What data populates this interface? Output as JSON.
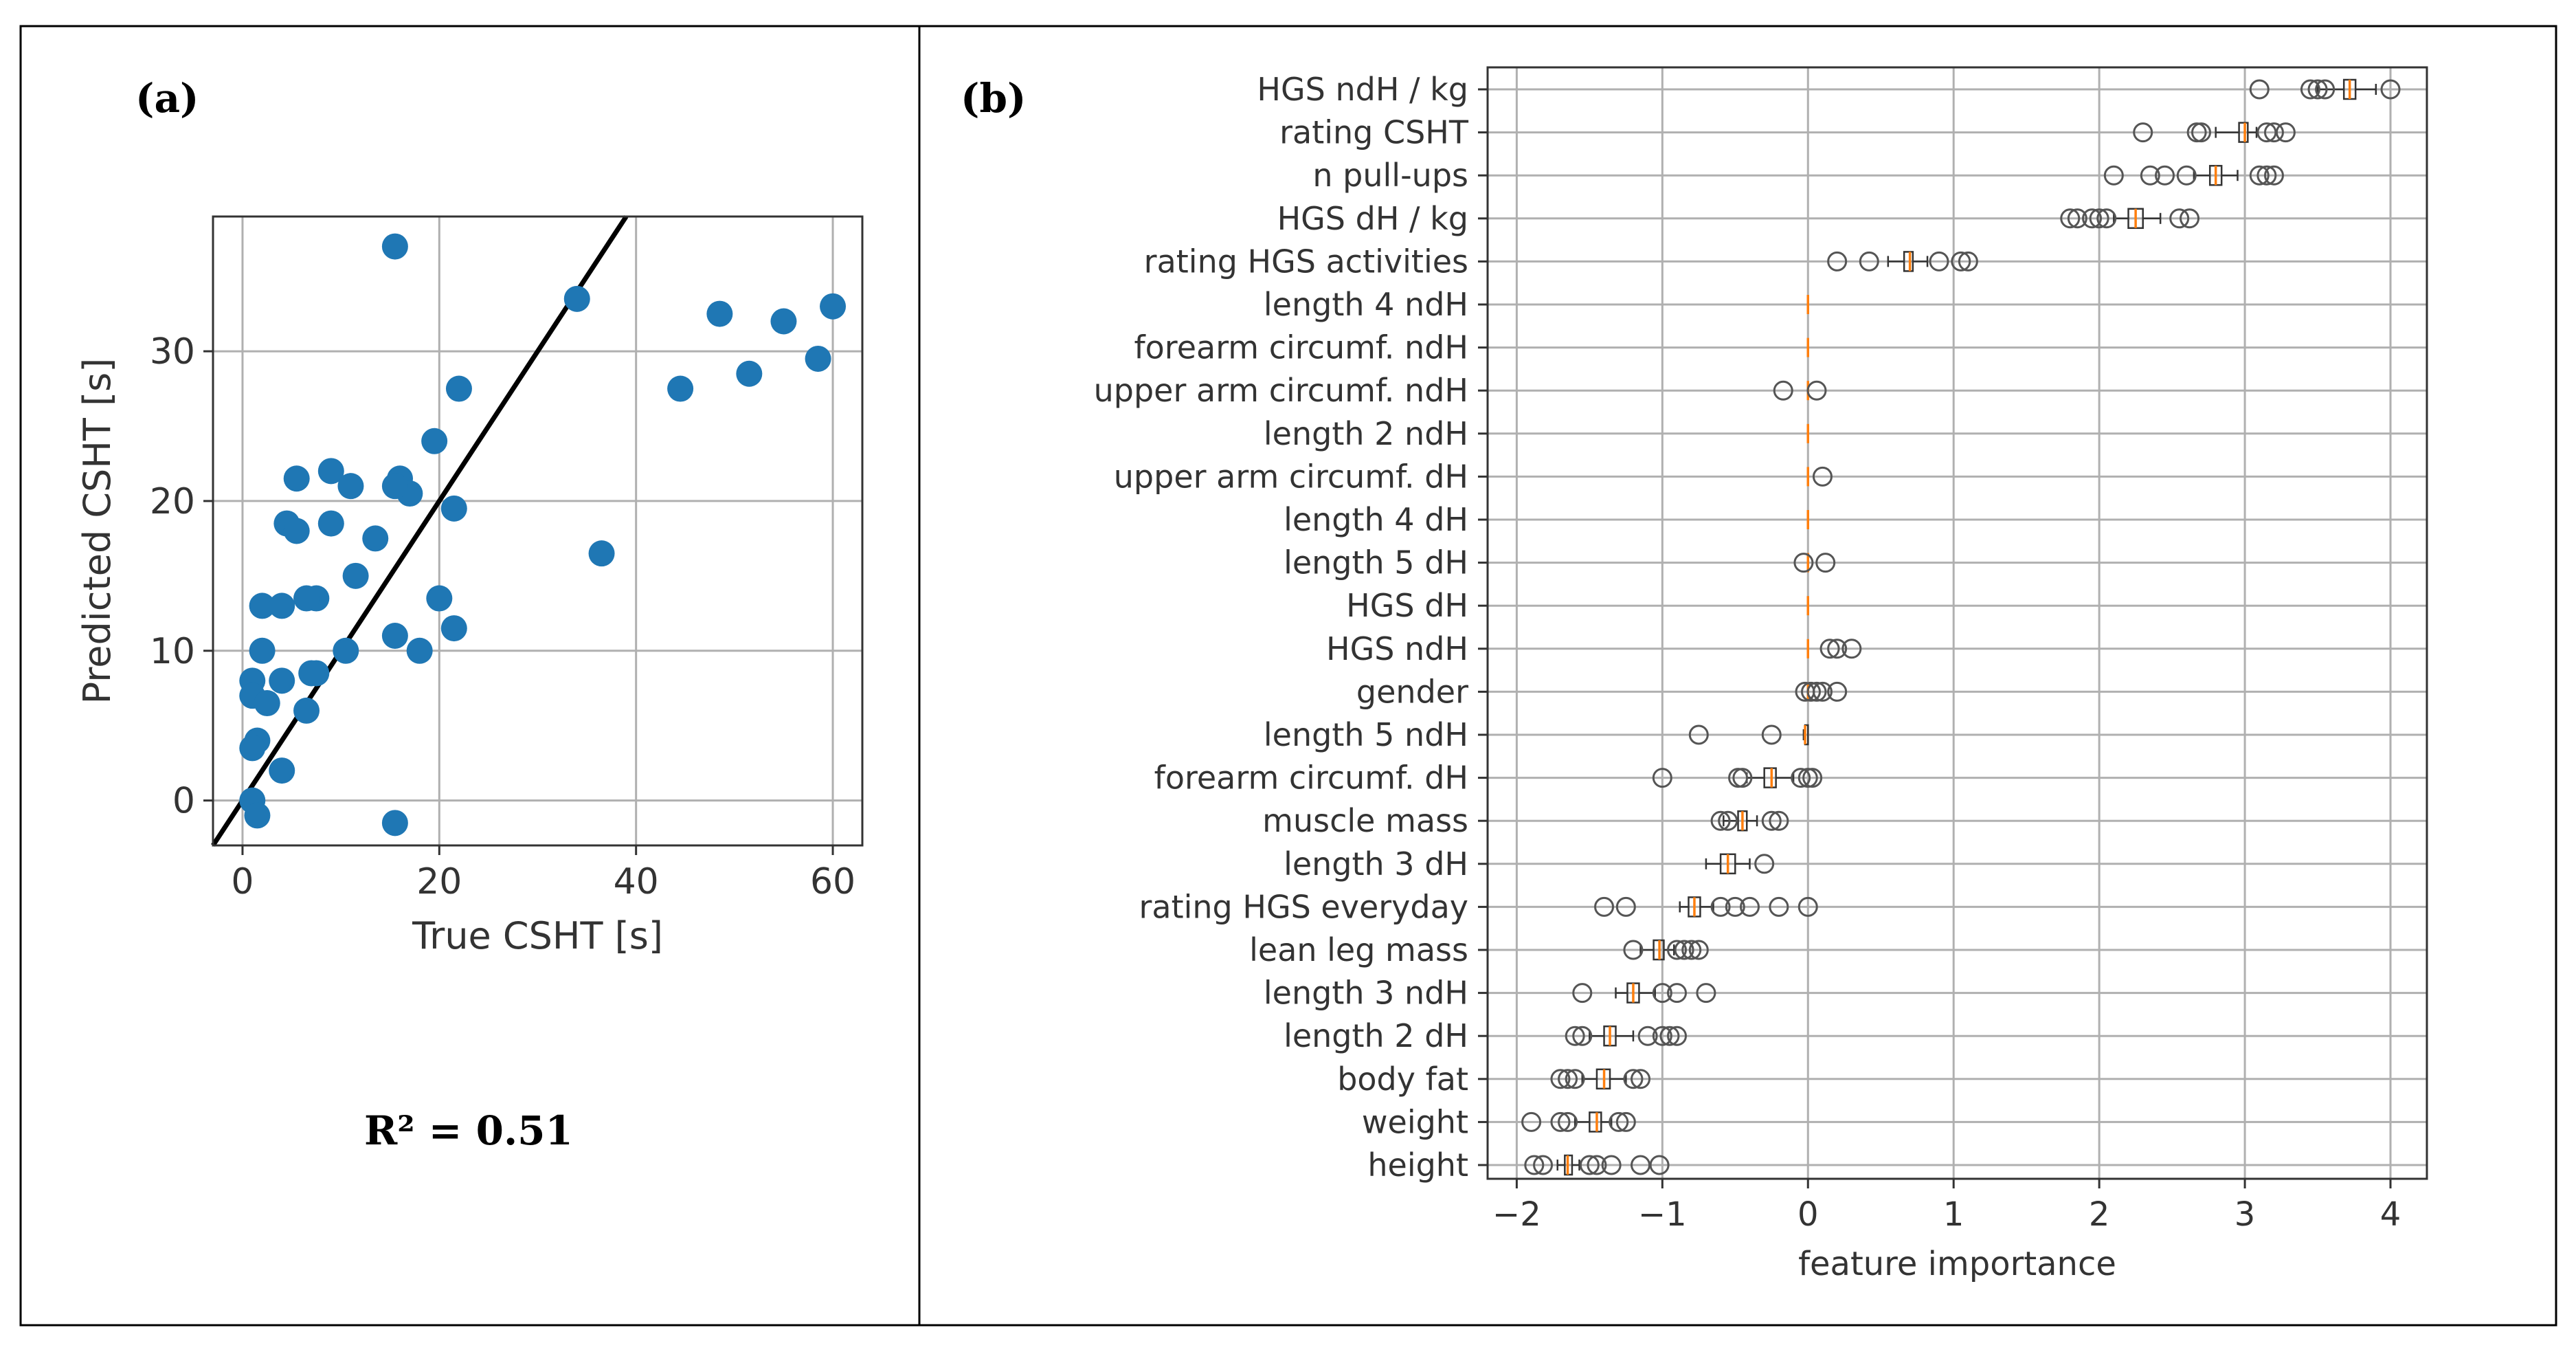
{
  "panel_a": {
    "label": "(a)",
    "r2_text": "R² = 0.51"
  },
  "panel_b": {
    "label": "(b)"
  },
  "chart_data": [
    {
      "type": "scatter",
      "title": "",
      "xlabel": "True CSHT [s]",
      "ylabel": "Predicted CSHT [s]",
      "xlim": [
        -3,
        63
      ],
      "ylim": [
        -3,
        39
      ],
      "xticks": [
        0,
        20,
        40,
        60
      ],
      "yticks": [
        0,
        10,
        20,
        30
      ],
      "grid": true,
      "point_color": "#1f77b4",
      "line_color": "#000000",
      "identity_line": {
        "from": [
          -3,
          -3
        ],
        "to": [
          39,
          39
        ]
      },
      "x": [
        15.5,
        34,
        48.5,
        55,
        60,
        58.5,
        51.5,
        44.5,
        22,
        19.5,
        36.5,
        5.5,
        16,
        17,
        9,
        15.5,
        21.5,
        4.5,
        5.5,
        11,
        9,
        13.5,
        7.5,
        6.5,
        11.5,
        20,
        21.5,
        2,
        4,
        15.5,
        18,
        1,
        2,
        1,
        2.5,
        4,
        7.5,
        6.5,
        7,
        10.5,
        1.5,
        1,
        4,
        1,
        1.5,
        15.5
      ],
      "y": [
        37,
        33.5,
        32.5,
        32,
        33,
        29.5,
        28.5,
        27.5,
        27.5,
        24,
        16.5,
        21.5,
        21.5,
        20.5,
        22,
        21,
        19.5,
        18.5,
        18,
        21,
        18.5,
        17.5,
        13.5,
        13.5,
        15,
        13.5,
        11.5,
        13,
        13,
        11,
        10,
        8,
        10,
        7,
        6.5,
        8,
        8.5,
        6,
        8.5,
        10,
        4,
        3.5,
        2,
        0,
        -1,
        -1.5
      ]
    },
    {
      "type": "boxplot",
      "orientation": "horizontal",
      "xlabel": "feature importance",
      "ylabel": "",
      "xlim": [
        -2.2,
        4.25
      ],
      "xticks": [
        -2,
        -1,
        0,
        1,
        2,
        3,
        4
      ],
      "grid": true,
      "median_color": "#ff7f0e",
      "features": [
        {
          "name": "HGS ndH / kg",
          "whislo": 3.5,
          "q1": 3.68,
          "med": 3.72,
          "q3": 3.76,
          "whishi": 3.9,
          "fliers": [
            3.1,
            3.45,
            3.5,
            3.55,
            4.0
          ]
        },
        {
          "name": "rating CSHT",
          "whislo": 2.8,
          "q1": 2.96,
          "med": 3.0,
          "q3": 3.02,
          "whishi": 3.08,
          "fliers": [
            2.3,
            2.67,
            2.7,
            3.15,
            3.2,
            3.28
          ]
        },
        {
          "name": "n pull-ups",
          "whislo": 2.65,
          "q1": 2.76,
          "med": 2.8,
          "q3": 2.84,
          "whishi": 2.95,
          "fliers": [
            2.1,
            2.35,
            2.45,
            2.6,
            3.1,
            3.15,
            3.2
          ]
        },
        {
          "name": "HGS dH / kg",
          "whislo": 2.1,
          "q1": 2.2,
          "med": 2.25,
          "q3": 2.3,
          "whishi": 2.42,
          "fliers": [
            1.8,
            1.85,
            1.95,
            2.0,
            2.05,
            2.55,
            2.62
          ]
        },
        {
          "name": "rating HGS activities",
          "whislo": 0.55,
          "q1": 0.66,
          "med": 0.7,
          "q3": 0.72,
          "whishi": 0.82,
          "fliers": [
            0.2,
            0.42,
            0.9,
            1.05,
            1.1
          ]
        },
        {
          "name": "length 4 ndH",
          "whislo": 0.0,
          "q1": 0.0,
          "med": 0.0,
          "q3": 0.0,
          "whishi": 0.0,
          "fliers": []
        },
        {
          "name": "forearm circumf. ndH",
          "whislo": 0.0,
          "q1": 0.0,
          "med": 0.0,
          "q3": 0.0,
          "whishi": 0.0,
          "fliers": []
        },
        {
          "name": "upper arm circumf. ndH",
          "whislo": 0.0,
          "q1": 0.0,
          "med": 0.0,
          "q3": 0.0,
          "whishi": 0.0,
          "fliers": [
            -0.17,
            0.06
          ]
        },
        {
          "name": "length 2 ndH",
          "whislo": 0.0,
          "q1": 0.0,
          "med": 0.0,
          "q3": 0.0,
          "whishi": 0.0,
          "fliers": []
        },
        {
          "name": "upper arm circumf. dH",
          "whislo": 0.0,
          "q1": 0.0,
          "med": 0.0,
          "q3": 0.0,
          "whishi": 0.0,
          "fliers": [
            0.1
          ]
        },
        {
          "name": "length 4 dH",
          "whislo": 0.0,
          "q1": 0.0,
          "med": 0.0,
          "q3": 0.0,
          "whishi": 0.0,
          "fliers": []
        },
        {
          "name": "length 5 dH",
          "whislo": 0.0,
          "q1": 0.0,
          "med": 0.0,
          "q3": 0.0,
          "whishi": 0.0,
          "fliers": [
            -0.03,
            0.12
          ]
        },
        {
          "name": "HGS dH",
          "whislo": 0.0,
          "q1": 0.0,
          "med": 0.0,
          "q3": 0.0,
          "whishi": 0.0,
          "fliers": []
        },
        {
          "name": "HGS ndH",
          "whislo": 0.0,
          "q1": 0.0,
          "med": 0.0,
          "q3": 0.0,
          "whishi": 0.0,
          "fliers": [
            0.15,
            0.2,
            0.3
          ]
        },
        {
          "name": "gender",
          "whislo": 0.0,
          "q1": 0.0,
          "med": 0.0,
          "q3": 0.0,
          "whishi": 0.0,
          "fliers": [
            -0.02,
            0.02,
            0.06,
            0.1,
            0.2
          ]
        },
        {
          "name": "length 5 ndH",
          "whislo": -0.03,
          "q1": -0.02,
          "med": -0.02,
          "q3": 0.0,
          "whishi": 0.0,
          "fliers": [
            -0.75,
            -0.25
          ]
        },
        {
          "name": "forearm circumf. dH",
          "whislo": -0.42,
          "q1": -0.3,
          "med": -0.25,
          "q3": -0.22,
          "whishi": -0.1,
          "fliers": [
            -1.0,
            -0.48,
            -0.45,
            -0.05,
            0.0,
            0.03
          ]
        },
        {
          "name": "muscle mass",
          "whislo": -0.58,
          "q1": -0.48,
          "med": -0.45,
          "q3": -0.42,
          "whishi": -0.35,
          "fliers": [
            -0.6,
            -0.55,
            -0.25,
            -0.2
          ]
        },
        {
          "name": "length 3 dH",
          "whislo": -0.7,
          "q1": -0.6,
          "med": -0.55,
          "q3": -0.5,
          "whishi": -0.4,
          "fliers": [
            -0.3
          ]
        },
        {
          "name": "rating HGS everyday",
          "whislo": -0.88,
          "q1": -0.82,
          "med": -0.78,
          "q3": -0.74,
          "whishi": -0.65,
          "fliers": [
            -1.4,
            -1.25,
            -0.6,
            -0.5,
            -0.4,
            -0.2,
            0.0
          ]
        },
        {
          "name": "lean leg mass",
          "whislo": -1.15,
          "q1": -1.06,
          "med": -1.02,
          "q3": -0.99,
          "whishi": -0.92,
          "fliers": [
            -1.2,
            -0.9,
            -0.85,
            -0.8,
            -0.75
          ]
        },
        {
          "name": "length 3 ndH",
          "whislo": -1.32,
          "q1": -1.24,
          "med": -1.2,
          "q3": -1.16,
          "whishi": -1.05,
          "fliers": [
            -1.55,
            -1.0,
            -0.9,
            -0.7
          ]
        },
        {
          "name": "length 2 dH",
          "whislo": -1.5,
          "q1": -1.4,
          "med": -1.36,
          "q3": -1.32,
          "whishi": -1.2,
          "fliers": [
            -1.6,
            -1.55,
            -1.1,
            -1.0,
            -0.95,
            -0.9
          ]
        },
        {
          "name": "body fat",
          "whislo": -1.55,
          "q1": -1.45,
          "med": -1.4,
          "q3": -1.36,
          "whishi": -1.25,
          "fliers": [
            -1.7,
            -1.65,
            -1.6,
            -1.2,
            -1.15
          ]
        },
        {
          "name": "weight",
          "whislo": -1.6,
          "q1": -1.5,
          "med": -1.45,
          "q3": -1.42,
          "whishi": -1.35,
          "fliers": [
            -1.9,
            -1.7,
            -1.65,
            -1.3,
            -1.25
          ]
        },
        {
          "name": "height",
          "whislo": -1.72,
          "q1": -1.67,
          "med": -1.65,
          "q3": -1.62,
          "whishi": -1.57,
          "fliers": [
            -1.88,
            -1.82,
            -1.5,
            -1.45,
            -1.35,
            -1.15,
            -1.02
          ]
        }
      ]
    }
  ]
}
